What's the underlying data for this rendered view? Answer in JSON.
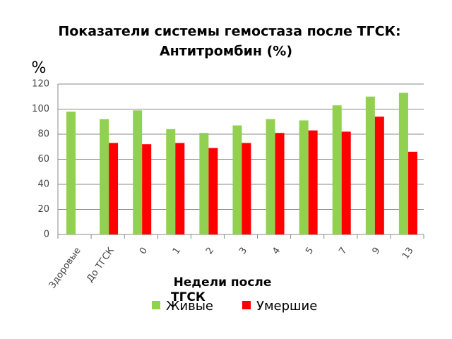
{
  "chart_data": {
    "type": "bar",
    "title": [
      "Показатели системы гемостаза после ТГСК:",
      "Антитромбин (%)"
    ],
    "y_label": "%",
    "x_label": [
      "Недели после",
      "ТГСК"
    ],
    "categories": [
      "Здоровые",
      "До ТГСК",
      "0",
      "1",
      "2",
      "3",
      "4",
      "5",
      "7",
      "9",
      "13"
    ],
    "series": [
      {
        "name": "Живые",
        "color": "#92d050",
        "values": [
          98,
          92,
          99,
          84,
          81,
          87,
          92,
          91,
          103,
          110,
          113
        ]
      },
      {
        "name": "Умершие",
        "color": "#ff0000",
        "values": [
          null,
          73,
          72,
          73,
          69,
          73,
          81,
          83,
          82,
          94,
          66
        ]
      }
    ],
    "ylim": [
      0,
      120
    ],
    "yticks": [
      0,
      20,
      40,
      60,
      80,
      100,
      120
    ],
    "grid": true,
    "legend": "bottom"
  }
}
